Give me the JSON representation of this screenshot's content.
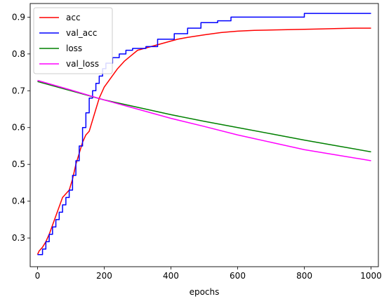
{
  "chart_data": {
    "type": "line",
    "xlabel": "epochs",
    "ylabel": "",
    "title": "",
    "xlim": [
      -22,
      1022
    ],
    "ylim": [
      0.222,
      0.937
    ],
    "xticks": [
      0,
      200,
      400,
      600,
      800,
      1000
    ],
    "yticks": [
      0.3,
      0.4,
      0.5,
      0.6,
      0.7,
      0.8,
      0.9
    ],
    "xtick_labels": [
      "0",
      "200",
      "400",
      "600",
      "800",
      "1000"
    ],
    "ytick_labels": [
      "0.3",
      "0.4",
      "0.5",
      "0.6",
      "0.7",
      "0.8",
      "0.9"
    ],
    "grid": false,
    "legend": "upper-left",
    "series": [
      {
        "name": "acc",
        "color": "#ff0000",
        "step": false,
        "x": [
          0,
          5,
          15,
          25,
          35,
          45,
          55,
          65,
          75,
          85,
          95,
          105,
          115,
          125,
          135,
          145,
          155,
          165,
          175,
          185,
          200,
          220,
          240,
          260,
          280,
          300,
          320,
          340,
          360,
          380,
          400,
          420,
          450,
          500,
          550,
          600,
          650,
          700,
          750,
          800,
          850,
          900,
          950,
          1000
        ],
        "y": [
          0.255,
          0.265,
          0.275,
          0.29,
          0.31,
          0.335,
          0.36,
          0.385,
          0.41,
          0.42,
          0.43,
          0.46,
          0.5,
          0.53,
          0.56,
          0.58,
          0.59,
          0.62,
          0.65,
          0.68,
          0.71,
          0.735,
          0.76,
          0.78,
          0.795,
          0.81,
          0.815,
          0.82,
          0.825,
          0.83,
          0.835,
          0.84,
          0.845,
          0.852,
          0.858,
          0.862,
          0.864,
          0.865,
          0.866,
          0.867,
          0.868,
          0.869,
          0.87,
          0.87
        ]
      },
      {
        "name": "val_acc",
        "color": "#0000ff",
        "step": true,
        "x": [
          0,
          15,
          25,
          35,
          45,
          55,
          65,
          75,
          85,
          95,
          105,
          115,
          125,
          135,
          145,
          155,
          165,
          175,
          185,
          195,
          205,
          225,
          245,
          265,
          285,
          325,
          360,
          410,
          450,
          490,
          540,
          580,
          650,
          720,
          800,
          860,
          1000
        ],
        "y": [
          0.255,
          0.27,
          0.29,
          0.31,
          0.33,
          0.35,
          0.37,
          0.39,
          0.41,
          0.43,
          0.47,
          0.51,
          0.55,
          0.6,
          0.64,
          0.68,
          0.7,
          0.72,
          0.74,
          0.76,
          0.775,
          0.79,
          0.8,
          0.81,
          0.815,
          0.82,
          0.84,
          0.855,
          0.87,
          0.885,
          0.89,
          0.9,
          0.9,
          0.9,
          0.91,
          0.91,
          0.91
        ]
      },
      {
        "name": "loss",
        "color": "#008000",
        "step": false,
        "x": [
          0,
          100,
          200,
          300,
          400,
          500,
          600,
          700,
          800,
          900,
          1000
        ],
        "y": [
          0.725,
          0.7,
          0.675,
          0.655,
          0.635,
          0.617,
          0.6,
          0.583,
          0.566,
          0.55,
          0.534
        ]
      },
      {
        "name": "val_loss",
        "color": "#ff00ff",
        "step": false,
        "x": [
          0,
          100,
          200,
          300,
          400,
          500,
          600,
          700,
          800,
          900,
          1000
        ],
        "y": [
          0.728,
          0.702,
          0.675,
          0.65,
          0.625,
          0.603,
          0.58,
          0.56,
          0.54,
          0.525,
          0.51
        ]
      }
    ]
  }
}
